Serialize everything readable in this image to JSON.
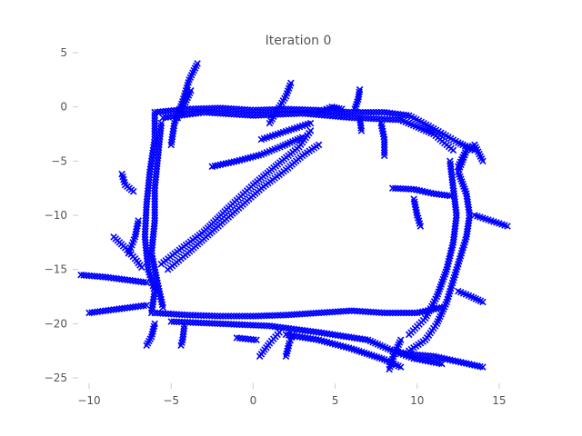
{
  "chart_data": {
    "type": "scatter",
    "title": "Iteration 0",
    "xlabel": "",
    "ylabel": "",
    "xlim": [
      -11,
      16.5
    ],
    "ylim": [
      -26,
      5
    ],
    "xticks": [
      -10,
      -5,
      0,
      5,
      10,
      15
    ],
    "xtick_labels": [
      "−10",
      "−5",
      "0",
      "5",
      "10",
      "15"
    ],
    "yticks": [
      5,
      0,
      -5,
      -10,
      -15,
      -20,
      -25
    ],
    "ytick_labels": [
      "5",
      "0",
      "−5",
      "−10",
      "−15",
      "−20",
      "−25"
    ],
    "grid": false,
    "legend": "none",
    "marker": "x",
    "color": "#0000ff",
    "paths": [
      {
        "name": "top-edge",
        "points": [
          [
            -6.0,
            -0.5
          ],
          [
            -4,
            -0.2
          ],
          [
            -2,
            -0.1
          ],
          [
            0,
            -0.3
          ],
          [
            2,
            -0.2
          ],
          [
            4,
            -0.3
          ],
          [
            6,
            -0.5
          ],
          [
            8,
            -0.5
          ],
          [
            9.5,
            -0.8
          ],
          [
            11,
            -2.0
          ],
          [
            12.5,
            -3.3
          ],
          [
            13.5,
            -4.0
          ]
        ]
      },
      {
        "name": "top-edge-2",
        "points": [
          [
            -5.5,
            -1.0
          ],
          [
            -3,
            -0.5
          ],
          [
            0,
            -0.8
          ],
          [
            3,
            -0.6
          ],
          [
            6,
            -1.0
          ],
          [
            9,
            -1.2
          ],
          [
            11,
            -2.5
          ],
          [
            12.2,
            -4.0
          ]
        ]
      },
      {
        "name": "right-edge",
        "points": [
          [
            13.0,
            -4.0
          ],
          [
            12.5,
            -6.0
          ],
          [
            13.0,
            -8.0
          ],
          [
            13.2,
            -10.0
          ],
          [
            13.0,
            -12.0
          ],
          [
            12.6,
            -14.0
          ],
          [
            12.2,
            -16.0
          ],
          [
            11.8,
            -18.0
          ],
          [
            11.2,
            -20.0
          ],
          [
            10.5,
            -21.5
          ],
          [
            9.5,
            -22.5
          ]
        ]
      },
      {
        "name": "right-edge-2",
        "points": [
          [
            12.0,
            -5.0
          ],
          [
            12.2,
            -7.5
          ],
          [
            12.4,
            -10.0
          ],
          [
            12.2,
            -12.5
          ],
          [
            11.8,
            -15.0
          ],
          [
            11.2,
            -17.5
          ],
          [
            10.5,
            -19.5
          ],
          [
            9.5,
            -21.0
          ]
        ]
      },
      {
        "name": "bottom-edge",
        "points": [
          [
            -6.0,
            -19.0
          ],
          [
            -4,
            -19.2
          ],
          [
            -2,
            -19.3
          ],
          [
            0,
            -19.3
          ],
          [
            2,
            -19.2
          ],
          [
            4,
            -19.0
          ],
          [
            6,
            -18.8
          ],
          [
            8,
            -19.0
          ],
          [
            10,
            -19.0
          ],
          [
            11.5,
            -18.5
          ]
        ]
      },
      {
        "name": "bottom-edge-2",
        "points": [
          [
            -5.0,
            -19.8
          ],
          [
            -2,
            -20.0
          ],
          [
            1,
            -20.2
          ],
          [
            4,
            -20.8
          ],
          [
            7,
            -21.5
          ],
          [
            8.5,
            -22.5
          ],
          [
            9.5,
            -22.8
          ],
          [
            11,
            -23.0
          ],
          [
            12.5,
            -23.5
          ],
          [
            14,
            -24.0
          ]
        ]
      },
      {
        "name": "bottom-edge-3",
        "points": [
          [
            2.0,
            -21.0
          ],
          [
            4,
            -21.5
          ],
          [
            6,
            -22.3
          ],
          [
            8,
            -23.3
          ],
          [
            9,
            -24.0
          ]
        ]
      },
      {
        "name": "left-edge",
        "points": [
          [
            -6.0,
            -0.5
          ],
          [
            -6.0,
            -3.0
          ],
          [
            -6.3,
            -6.0
          ],
          [
            -6.5,
            -9.0
          ],
          [
            -6.6,
            -12.0
          ],
          [
            -6.4,
            -15.0
          ],
          [
            -6.0,
            -17.0
          ],
          [
            -6.2,
            -19.0
          ]
        ]
      },
      {
        "name": "left-edge-2",
        "points": [
          [
            -5.6,
            -1.5
          ],
          [
            -5.8,
            -4.5
          ],
          [
            -6.0,
            -7.5
          ],
          [
            -6.0,
            -10.5
          ],
          [
            -6.2,
            -13.5
          ],
          [
            -5.8,
            -16.5
          ],
          [
            -5.5,
            -18.5
          ]
        ]
      },
      {
        "name": "diagonal",
        "points": [
          [
            -5.2,
            -15.0
          ],
          [
            -4,
            -13.5
          ],
          [
            -2.5,
            -11.5
          ],
          [
            -1,
            -9.5
          ],
          [
            0.5,
            -7.5
          ],
          [
            2,
            -5.8
          ],
          [
            3,
            -4.5
          ],
          [
            4,
            -3.5
          ]
        ]
      },
      {
        "name": "diagonal-2",
        "points": [
          [
            -5.6,
            -14.5
          ],
          [
            -4.5,
            -13.2
          ],
          [
            -3,
            -11.5
          ],
          [
            -1.5,
            -9.3
          ],
          [
            0,
            -7.2
          ],
          [
            1.5,
            -5.3
          ],
          [
            2.8,
            -3.7
          ],
          [
            3.5,
            -2.2
          ]
        ]
      },
      {
        "name": "spur-top-left",
        "points": [
          [
            -5.0,
            -3.5
          ],
          [
            -4.8,
            -1.5
          ],
          [
            -4.3,
            0.5
          ],
          [
            -3.9,
            2.5
          ],
          [
            -3.4,
            4.0
          ]
        ]
      },
      {
        "name": "spur-top-left-2",
        "points": [
          [
            -4.6,
            -1.0
          ],
          [
            -4.2,
            0.2
          ],
          [
            -3.8,
            1.5
          ]
        ]
      },
      {
        "name": "spur-top",
        "points": [
          [
            1.0,
            -1.5
          ],
          [
            1.4,
            -0.5
          ],
          [
            2.0,
            1.0
          ],
          [
            2.3,
            2.2
          ]
        ]
      },
      {
        "name": "spur-top-3",
        "points": [
          [
            6.2,
            -0.2
          ],
          [
            6.4,
            0.7
          ],
          [
            6.5,
            1.6
          ]
        ]
      },
      {
        "name": "spur-top-4",
        "points": [
          [
            4.0,
            -0.5
          ],
          [
            4.8,
            0.0
          ],
          [
            5.4,
            -0.2
          ]
        ]
      },
      {
        "name": "spur-upper-right",
        "points": [
          [
            12.5,
            -5.5
          ],
          [
            13.0,
            -4.0
          ],
          [
            13.5,
            -3.5
          ],
          [
            14.0,
            -5.0
          ]
        ]
      },
      {
        "name": "spur-inner-1",
        "points": [
          [
            -2.5,
            -5.5
          ],
          [
            -1,
            -5.0
          ],
          [
            0.5,
            -4.4
          ],
          [
            1.8,
            -3.6
          ],
          [
            3.0,
            -2.8
          ]
        ]
      },
      {
        "name": "spur-inner-2",
        "points": [
          [
            0.5,
            -3.0
          ],
          [
            1.5,
            -2.5
          ],
          [
            2.5,
            -2.0
          ],
          [
            3.5,
            -1.5
          ]
        ]
      },
      {
        "name": "spur-drop-1",
        "points": [
          [
            7.8,
            -1.5
          ],
          [
            8.0,
            -3.0
          ],
          [
            8.0,
            -4.5
          ]
        ]
      },
      {
        "name": "spur-drop-2",
        "points": [
          [
            6.5,
            -1.0
          ],
          [
            6.6,
            -2.2
          ]
        ]
      },
      {
        "name": "spur-inner-right",
        "points": [
          [
            8.5,
            -7.5
          ],
          [
            9.8,
            -7.6
          ],
          [
            11.0,
            -8.0
          ],
          [
            12.0,
            -8.2
          ]
        ]
      },
      {
        "name": "spur-inner-right-2",
        "points": [
          [
            9.8,
            -8.5
          ],
          [
            10.0,
            -10.0
          ],
          [
            10.2,
            -11.0
          ]
        ]
      },
      {
        "name": "spur-right",
        "points": [
          [
            13.5,
            -10.0
          ],
          [
            14.5,
            -10.5
          ],
          [
            15.5,
            -11.0
          ]
        ]
      },
      {
        "name": "spur-right-2",
        "points": [
          [
            12.5,
            -17.0
          ],
          [
            13.3,
            -17.5
          ],
          [
            14.0,
            -18.0
          ]
        ]
      },
      {
        "name": "spur-left-1",
        "points": [
          [
            -10.5,
            -15.5
          ],
          [
            -9,
            -15.7
          ],
          [
            -7.5,
            -16.0
          ],
          [
            -6.5,
            -16.2
          ]
        ]
      },
      {
        "name": "spur-left-2",
        "points": [
          [
            -8.5,
            -12.0
          ],
          [
            -7.8,
            -13.0
          ],
          [
            -7.2,
            -14.0
          ],
          [
            -6.8,
            -14.8
          ]
        ]
      },
      {
        "name": "spur-left-3",
        "points": [
          [
            -8.0,
            -6.2
          ],
          [
            -7.8,
            -7.2
          ],
          [
            -7.3,
            -7.8
          ]
        ]
      },
      {
        "name": "spur-left-4",
        "points": [
          [
            -7.0,
            -10.5
          ],
          [
            -7.2,
            -12.0
          ],
          [
            -7.6,
            -13.5
          ]
        ]
      },
      {
        "name": "spur-left-5",
        "points": [
          [
            -10.0,
            -19.0
          ],
          [
            -9,
            -18.8
          ],
          [
            -7.5,
            -18.5
          ],
          [
            -6.5,
            -18.3
          ]
        ]
      },
      {
        "name": "spur-bottom-left",
        "points": [
          [
            -6.0,
            -20.0
          ],
          [
            -6.2,
            -21.2
          ],
          [
            -6.5,
            -22.0
          ]
        ]
      },
      {
        "name": "spur-bottom-left-2",
        "points": [
          [
            -4.2,
            -20.2
          ],
          [
            -4.3,
            -21.5
          ],
          [
            -4.4,
            -22.0
          ]
        ]
      },
      {
        "name": "spur-bottom-mid",
        "points": [
          [
            0.4,
            -23.0
          ],
          [
            1.0,
            -21.8
          ],
          [
            1.6,
            -20.8
          ]
        ]
      },
      {
        "name": "spur-bottom-mid-2",
        "points": [
          [
            2.0,
            -23.0
          ],
          [
            2.2,
            -21.8
          ],
          [
            2.4,
            -21.0
          ]
        ]
      },
      {
        "name": "spur-bottom-right",
        "points": [
          [
            8.3,
            -24.2
          ],
          [
            8.6,
            -22.8
          ],
          [
            9.0,
            -21.5
          ]
        ]
      },
      {
        "name": "spur-small-1",
        "points": [
          [
            -1.0,
            -21.3
          ],
          [
            0.2,
            -21.5
          ]
        ]
      },
      {
        "name": "spur-small-2",
        "points": [
          [
            8.5,
            -22.5
          ],
          [
            9.8,
            -23.2
          ],
          [
            11.5,
            -23.7
          ]
        ]
      }
    ]
  }
}
